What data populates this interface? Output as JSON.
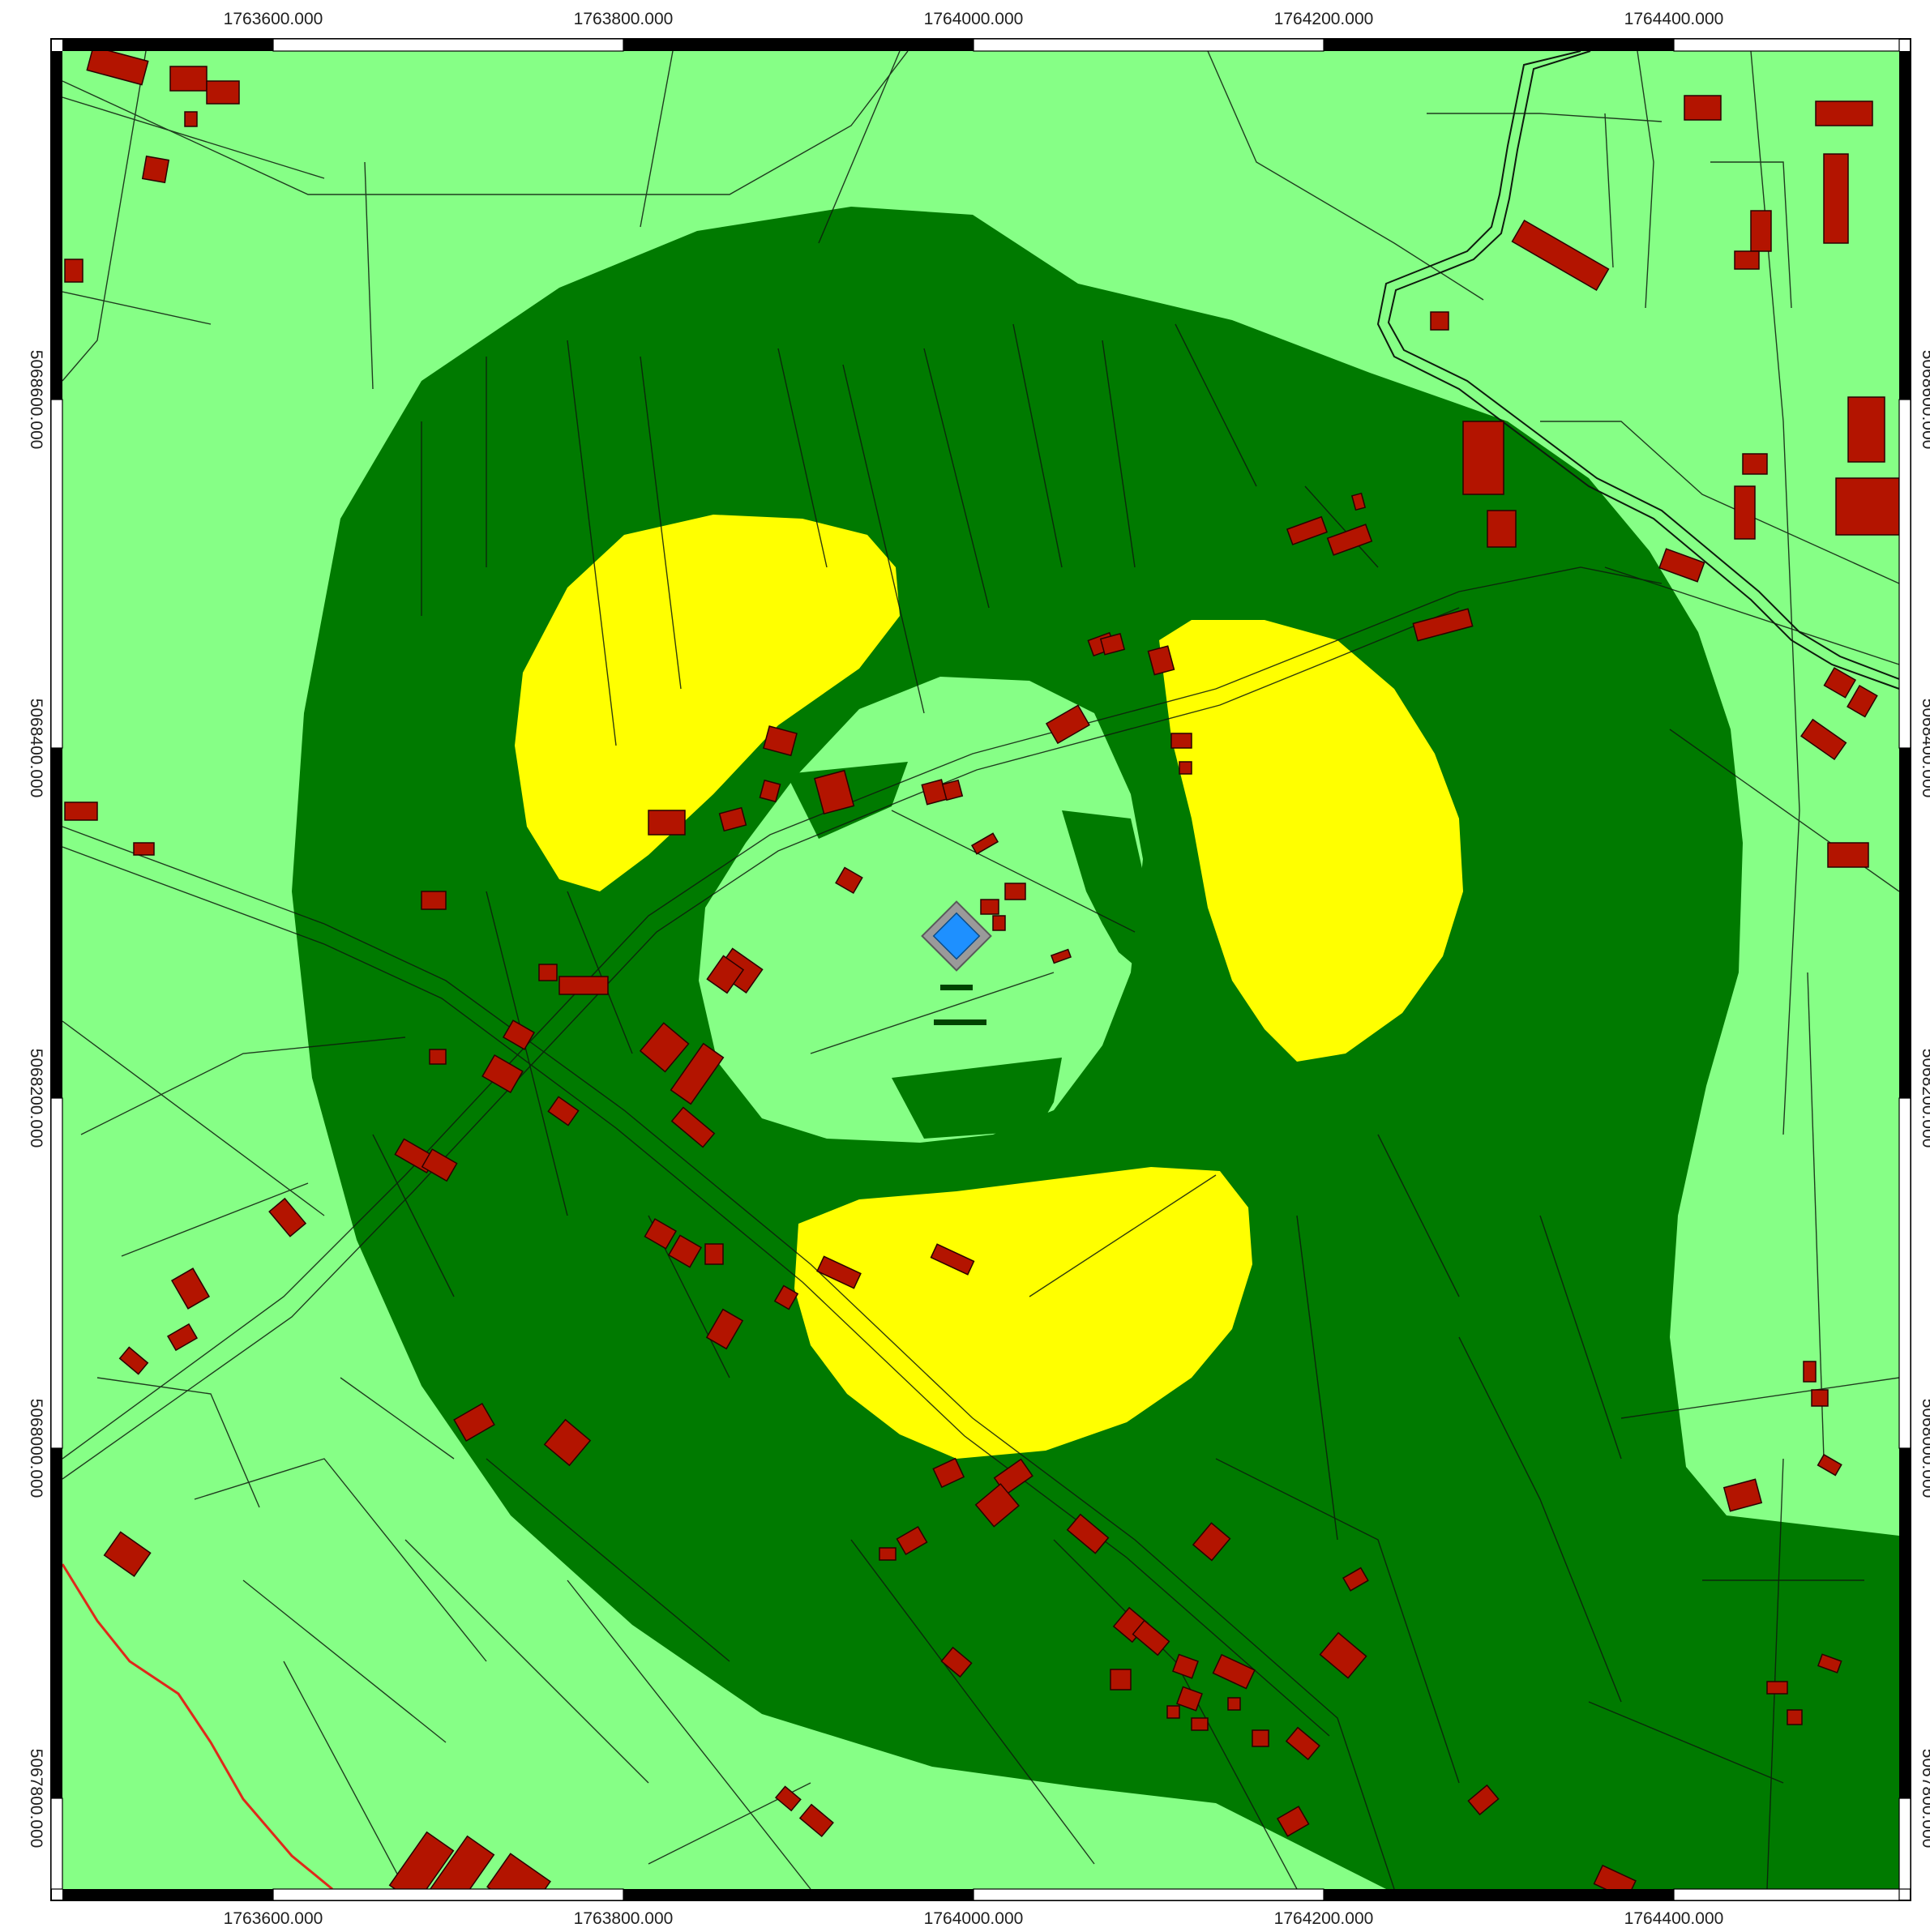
{
  "map": {
    "colors": {
      "background_zone": "#86ff86",
      "mid_zone": "#007a00",
      "high_zone": "#ffff00",
      "building_fill": "#b31400",
      "building_stroke": "#2a0000",
      "source_fill": "#1e90ff",
      "source_stroke": "#6f6f6f",
      "line_color": "#0d1b0d",
      "river_color": "#e0281a",
      "frame_dark": "#000000",
      "frame_light": "#ffffff"
    },
    "legend_semantics": {
      "light_green": "background level zone",
      "dark_green": "intermediate level zone",
      "yellow": "highest level zone",
      "red_polygons": "buildings",
      "blue_diamond": "source point"
    },
    "x_axis_labels": [
      "1763600.000",
      "1763800.000",
      "1764000.000",
      "1764200.000",
      "1764400.000"
    ],
    "y_axis_labels": [
      "5068600.000",
      "5068400.000",
      "5068200.000",
      "5068000.000",
      "5067800.000"
    ]
  }
}
